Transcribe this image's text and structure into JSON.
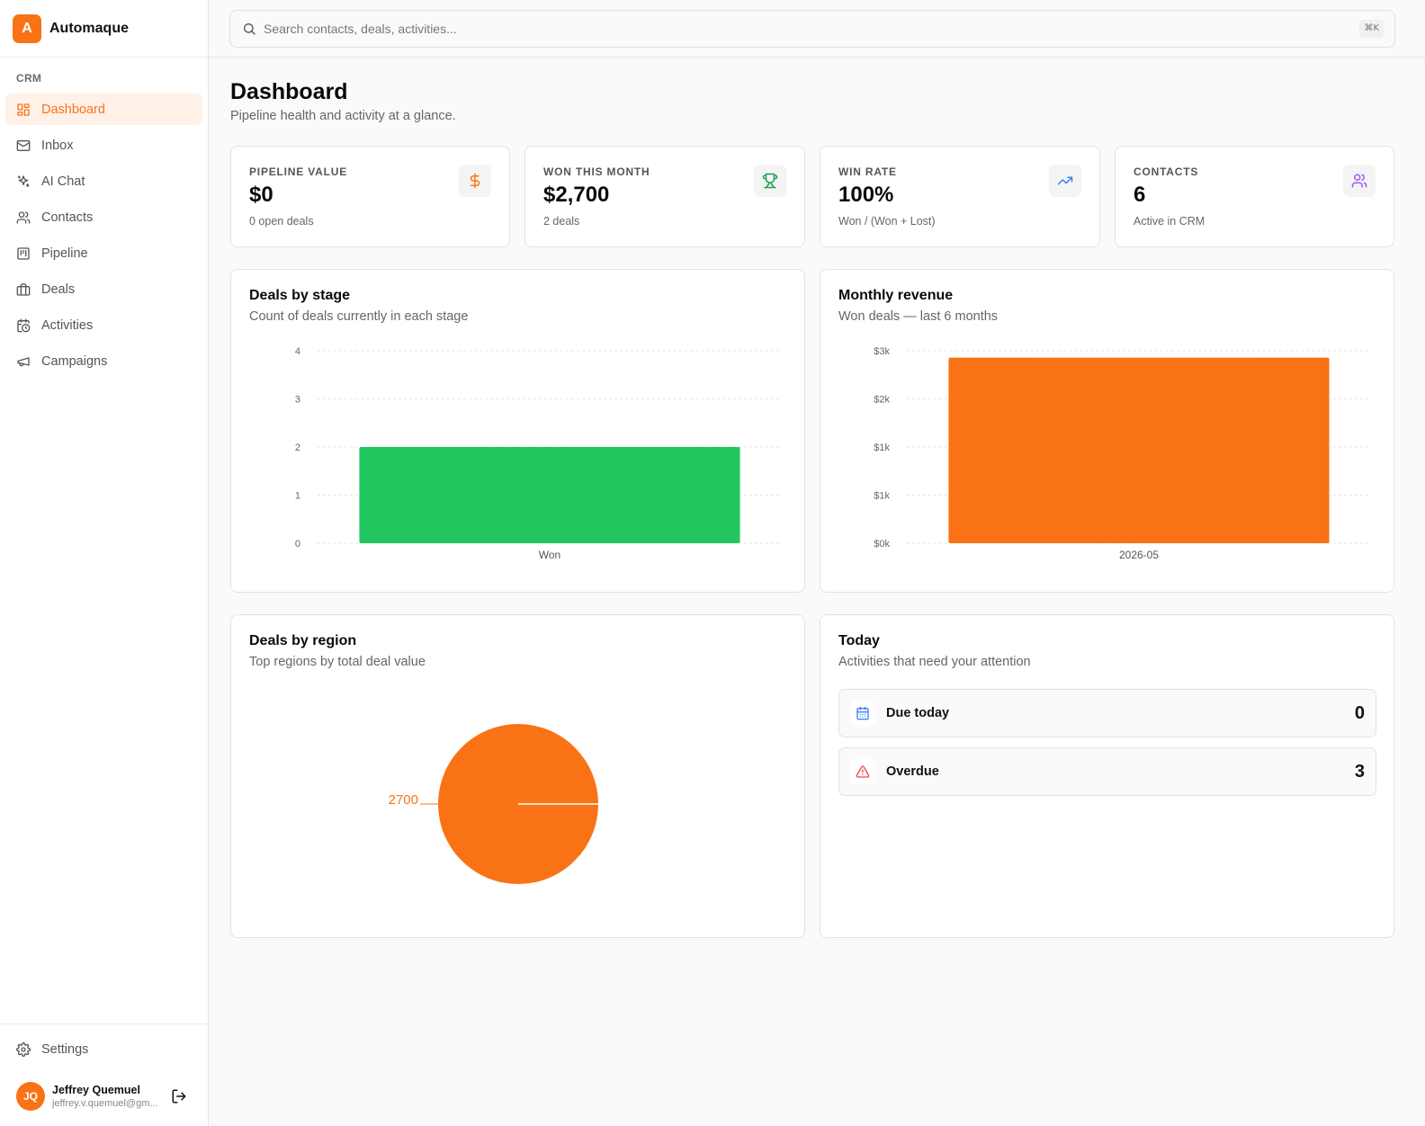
{
  "app": {
    "name": "Automaque",
    "logo_letter": "A",
    "accent": "#f97316"
  },
  "sidebar": {
    "group_label": "CRM",
    "items": [
      {
        "label": "Dashboard",
        "icon": "dashboard-icon",
        "active": true
      },
      {
        "label": "Inbox",
        "icon": "mail-icon"
      },
      {
        "label": "AI Chat",
        "icon": "sparkles-icon"
      },
      {
        "label": "Contacts",
        "icon": "users-icon"
      },
      {
        "label": "Pipeline",
        "icon": "kanban-icon"
      },
      {
        "label": "Deals",
        "icon": "briefcase-icon"
      },
      {
        "label": "Activities",
        "icon": "calendar-clock-icon"
      },
      {
        "label": "Campaigns",
        "icon": "megaphone-icon"
      }
    ],
    "settings_label": "Settings",
    "user": {
      "initials": "JQ",
      "name": "Jeffrey Quemuel",
      "email": "jeffrey.v.quemuel@gm..."
    }
  },
  "search": {
    "placeholder": "Search contacts, deals, activities...",
    "shortcut": "⌘K"
  },
  "page": {
    "title": "Dashboard",
    "subtitle": "Pipeline health and activity at a glance."
  },
  "stats": [
    {
      "label": "PIPELINE VALUE",
      "value": "$0",
      "sub": "0 open deals",
      "icon": "dollar-icon",
      "icon_color": "#f97316"
    },
    {
      "label": "WON THIS MONTH",
      "value": "$2,700",
      "sub": "2 deals",
      "icon": "trophy-icon",
      "icon_color": "#16a34a"
    },
    {
      "label": "WIN RATE",
      "value": "100%",
      "sub": "Won / (Won + Lost)",
      "icon": "trending-up-icon",
      "icon_color": "#3b82f6"
    },
    {
      "label": "CONTACTS",
      "value": "6",
      "sub": "Active in CRM",
      "icon": "users-icon",
      "icon_color": "#a855f7"
    }
  ],
  "cards": {
    "stage": {
      "title": "Deals by stage",
      "subtitle": "Count of deals currently in each stage"
    },
    "revenue": {
      "title": "Monthly revenue",
      "subtitle": "Won deals — last 6 months"
    },
    "region": {
      "title": "Deals by region",
      "subtitle": "Top regions by total deal value"
    },
    "today": {
      "title": "Today",
      "subtitle": "Activities that need your attention",
      "rows": [
        {
          "label": "Due today",
          "count": "0",
          "icon": "calendar-icon"
        },
        {
          "label": "Overdue",
          "count": "3",
          "icon": "alert-triangle-icon"
        }
      ]
    }
  },
  "chart_data": [
    {
      "type": "bar",
      "categories": [
        "Won"
      ],
      "values": [
        2
      ],
      "ylim": [
        0,
        4
      ],
      "yticks": [
        "0",
        "1",
        "2",
        "3",
        "4"
      ],
      "color": "#22c55e",
      "grid": true
    },
    {
      "type": "bar",
      "categories": [
        "2026-05"
      ],
      "values": [
        2700
      ],
      "ylim": [
        0,
        2800
      ],
      "yticks": [
        {
          "label": "$0k",
          "value": 0
        },
        {
          "label": "$1k",
          "value": 700
        },
        {
          "label": "$1k",
          "value": 1400
        },
        {
          "label": "$2k",
          "value": 2100
        },
        {
          "label": "$3k",
          "value": 2800
        }
      ],
      "color": "#f97316",
      "grid": true
    },
    {
      "type": "pie",
      "slices": [
        {
          "label": "2700",
          "value": 2700
        }
      ],
      "color": "#f97316"
    }
  ]
}
